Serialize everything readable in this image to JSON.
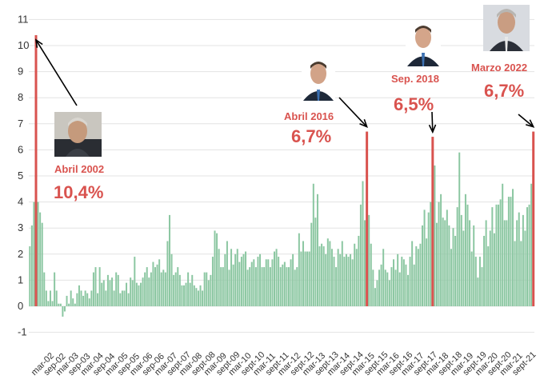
{
  "chart_data": {
    "type": "bar",
    "title": "",
    "xlabel": "",
    "ylabel": "",
    "ylim": [
      -1,
      11
    ],
    "yticks": [
      -1,
      0,
      1,
      2,
      3,
      4,
      5,
      6,
      7,
      8,
      9,
      10,
      11
    ],
    "grid": true,
    "colors": {
      "bar": "#8cc7a2",
      "highlight": "#d9534f",
      "arrow": "#000000"
    },
    "x_start": "2002-03",
    "x_tick_labels": [
      "mar-02",
      "sep-02",
      "mar-03",
      "sep-03",
      "mar-04",
      "sep-04",
      "mar-05",
      "sep-05",
      "mar-06",
      "sep-06",
      "mar-07",
      "sept-07",
      "mar-08",
      "sept-08",
      "mar-09",
      "sept-09",
      "mar-10",
      "sept-10",
      "mar-11",
      "sept-11",
      "mar-12",
      "sept-12",
      "mar-13",
      "sept-13",
      "mar-14",
      "sept-14",
      "mar-15",
      "sept-15",
      "mar-16",
      "sept-16",
      "mar-17",
      "sept-17",
      "mar-18",
      "sept-18",
      "mar-19",
      "sept-19",
      "mar-20",
      "sept-20",
      "mar-21",
      "sept-21"
    ],
    "series": [
      {
        "values": [
          2.3,
          3.1,
          4.0,
          10.4,
          4.0,
          3.6,
          3.2,
          1.3,
          0.6,
          0.2,
          0.6,
          0.2,
          1.3,
          0.6,
          0.1,
          0.1,
          -0.4,
          -0.2,
          0.4,
          0.1,
          0.6,
          0.3,
          0.1,
          0.5,
          0.8,
          0.6,
          0.4,
          0.6,
          0.5,
          0.3,
          0.6,
          1.3,
          1.5,
          0.5,
          1.5,
          0.9,
          1.0,
          0.6,
          1.2,
          1.0,
          1.1,
          0.6,
          1.3,
          1.2,
          0.5,
          0.6,
          0.6,
          0.9,
          0.5,
          1.1,
          1.0,
          1.9,
          0.9,
          0.8,
          0.9,
          1.1,
          1.3,
          1.5,
          1.1,
          1.3,
          1.7,
          1.5,
          1.6,
          1.8,
          1.3,
          1.4,
          1.3,
          2.5,
          3.5,
          2.0,
          1.2,
          1.3,
          1.5,
          1.2,
          0.8,
          0.8,
          0.9,
          1.3,
          0.9,
          1.2,
          0.8,
          0.7,
          0.6,
          0.8,
          0.6,
          1.3,
          1.3,
          1.0,
          1.2,
          1.9,
          2.9,
          2.8,
          2.2,
          1.5,
          1.5,
          2.0,
          2.5,
          1.4,
          2.2,
          1.6,
          2.0,
          2.2,
          1.7,
          1.9,
          2.0,
          2.1,
          1.4,
          1.5,
          1.7,
          1.8,
          1.5,
          1.9,
          2.0,
          1.5,
          1.5,
          1.8,
          1.8,
          1.5,
          1.8,
          2.1,
          2.2,
          1.9,
          1.5,
          1.6,
          1.7,
          1.5,
          1.5,
          1.8,
          2.0,
          1.4,
          1.5,
          2.8,
          2.1,
          2.5,
          2.1,
          2.1,
          2.1,
          3.2,
          4.7,
          3.4,
          4.3,
          2.3,
          2.4,
          2.3,
          2.0,
          2.6,
          2.5,
          2.2,
          1.9,
          1.5,
          2.2,
          2.0,
          2.5,
          1.9,
          2.0,
          1.9,
          2.0,
          1.8,
          2.4,
          2.2,
          2.7,
          3.9,
          4.8,
          3.3,
          6.7,
          3.5,
          2.4,
          1.4,
          0.7,
          1.0,
          1.4,
          1.6,
          2.2,
          1.4,
          1.3,
          1.0,
          1.5,
          1.8,
          1.4,
          2.0,
          1.3,
          1.9,
          1.8,
          1.6,
          1.2,
          1.9,
          2.5,
          1.6,
          2.3,
          2.2,
          2.4,
          3.1,
          3.7,
          2.6,
          3.6,
          4.0,
          6.5,
          5.4,
          3.2,
          4.0,
          4.3,
          3.4,
          3.3,
          3.7,
          3.1,
          2.2,
          3.0,
          2.7,
          3.8,
          5.9,
          3.5,
          2.9,
          4.3,
          3.9,
          3.3,
          2.1,
          3.1,
          1.9,
          1.1,
          1.9,
          1.5,
          2.7,
          3.3,
          2.3,
          2.9,
          3.8,
          2.8,
          3.9,
          3.9,
          4.1,
          4.7,
          3.3,
          3.3,
          4.2,
          4.2,
          4.5,
          2.5,
          3.3,
          3.6,
          2.5,
          3.5,
          2.9,
          3.8,
          3.9,
          4.7,
          6.7
        ]
      }
    ],
    "annotations": [
      {
        "label": "Abril 2002",
        "value_text": "10,4%"
      },
      {
        "label": "Abril 2016",
        "value_text": "6,7%"
      },
      {
        "label": "Sep. 2018",
        "value_text": "6,5%"
      },
      {
        "label": "Marzo 2022",
        "value_text": "6,7%"
      }
    ]
  }
}
